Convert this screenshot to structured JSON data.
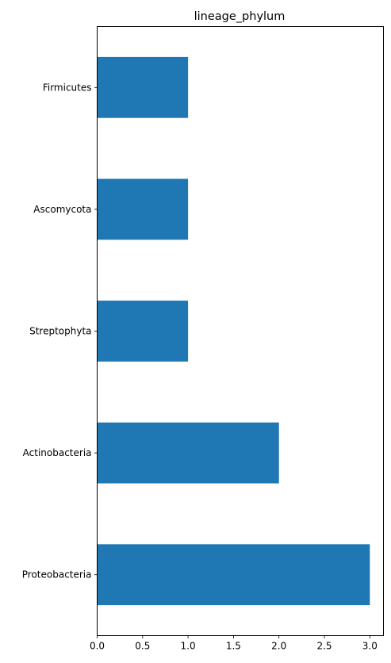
{
  "chart_data": {
    "type": "bar",
    "orientation": "horizontal",
    "title": "lineage_phylum",
    "xlabel": "",
    "ylabel": "",
    "categories": [
      "Firmicutes",
      "Ascomycota",
      "Streptophyta",
      "Actinobacteria",
      "Proteobacteria"
    ],
    "values": [
      1,
      1,
      1,
      2,
      3
    ],
    "xlim": [
      0,
      3.15
    ],
    "xticks": [
      0.0,
      0.5,
      1.0,
      1.5,
      2.0,
      2.5,
      3.0
    ],
    "xtick_labels": [
      "0.0",
      "0.5",
      "1.0",
      "1.5",
      "2.0",
      "2.5",
      "3.0"
    ],
    "grid": false,
    "bar_color": "#1f77b4"
  }
}
